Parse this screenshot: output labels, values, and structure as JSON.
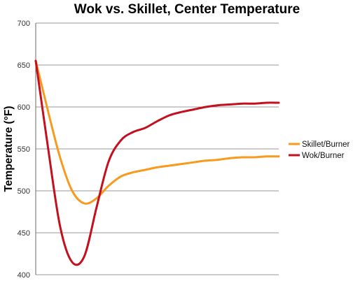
{
  "chart_data": {
    "type": "line",
    "title": "Wok vs. Skillet, Center Temperature",
    "xlabel": "",
    "ylabel": "Temperature (°F)",
    "ylim": [
      400,
      700
    ],
    "yticks": [
      400,
      450,
      500,
      550,
      600,
      650,
      700
    ],
    "grid": true,
    "legend": "right",
    "x": [
      0,
      1,
      2,
      3,
      4,
      5,
      6,
      7,
      8,
      9,
      10,
      11,
      12,
      13,
      14,
      15,
      16,
      17,
      18,
      19,
      20
    ],
    "series": [
      {
        "name": "Skillet/Burner",
        "color": "#f79a1e",
        "values": [
          655,
          596,
          540,
          500,
          485,
          491,
          506,
          517,
          522,
          525,
          528,
          530,
          532,
          534,
          536,
          537,
          539,
          540,
          540,
          541,
          541
        ]
      },
      {
        "name": "Wok/Burner",
        "color": "#c40f1f",
        "values": [
          655,
          553,
          458,
          415,
          422,
          480,
          535,
          560,
          570,
          575,
          583,
          590,
          594,
          597,
          600,
          602,
          603,
          604,
          604,
          605,
          605
        ]
      }
    ]
  }
}
